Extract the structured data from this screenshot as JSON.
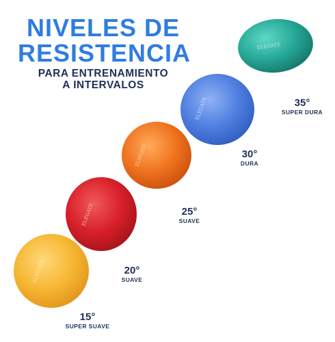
{
  "headline": {
    "line1": "NIVELES DE",
    "line2": "RESISTENCIA",
    "sub1": "PARA ENTRENAMIENTO",
    "sub2": "A INTERVALOS",
    "color": "#2f7de0",
    "sub_color": "#1f2f56"
  },
  "brand_mark": "ELEGATE",
  "levels": [
    {
      "degree": "15°",
      "name": "SUPER SUAVE",
      "color": "#f7b734"
    },
    {
      "degree": "20°",
      "name": "SUAVE",
      "color": "#d8202a"
    },
    {
      "degree": "25°",
      "name": "SUAVE",
      "color": "#f0731f"
    },
    {
      "degree": "30°",
      "name": "DURA",
      "color": "#4f7fe0"
    },
    {
      "degree": "35°",
      "name": "SUPER DURA",
      "color": "#27a998"
    }
  ]
}
